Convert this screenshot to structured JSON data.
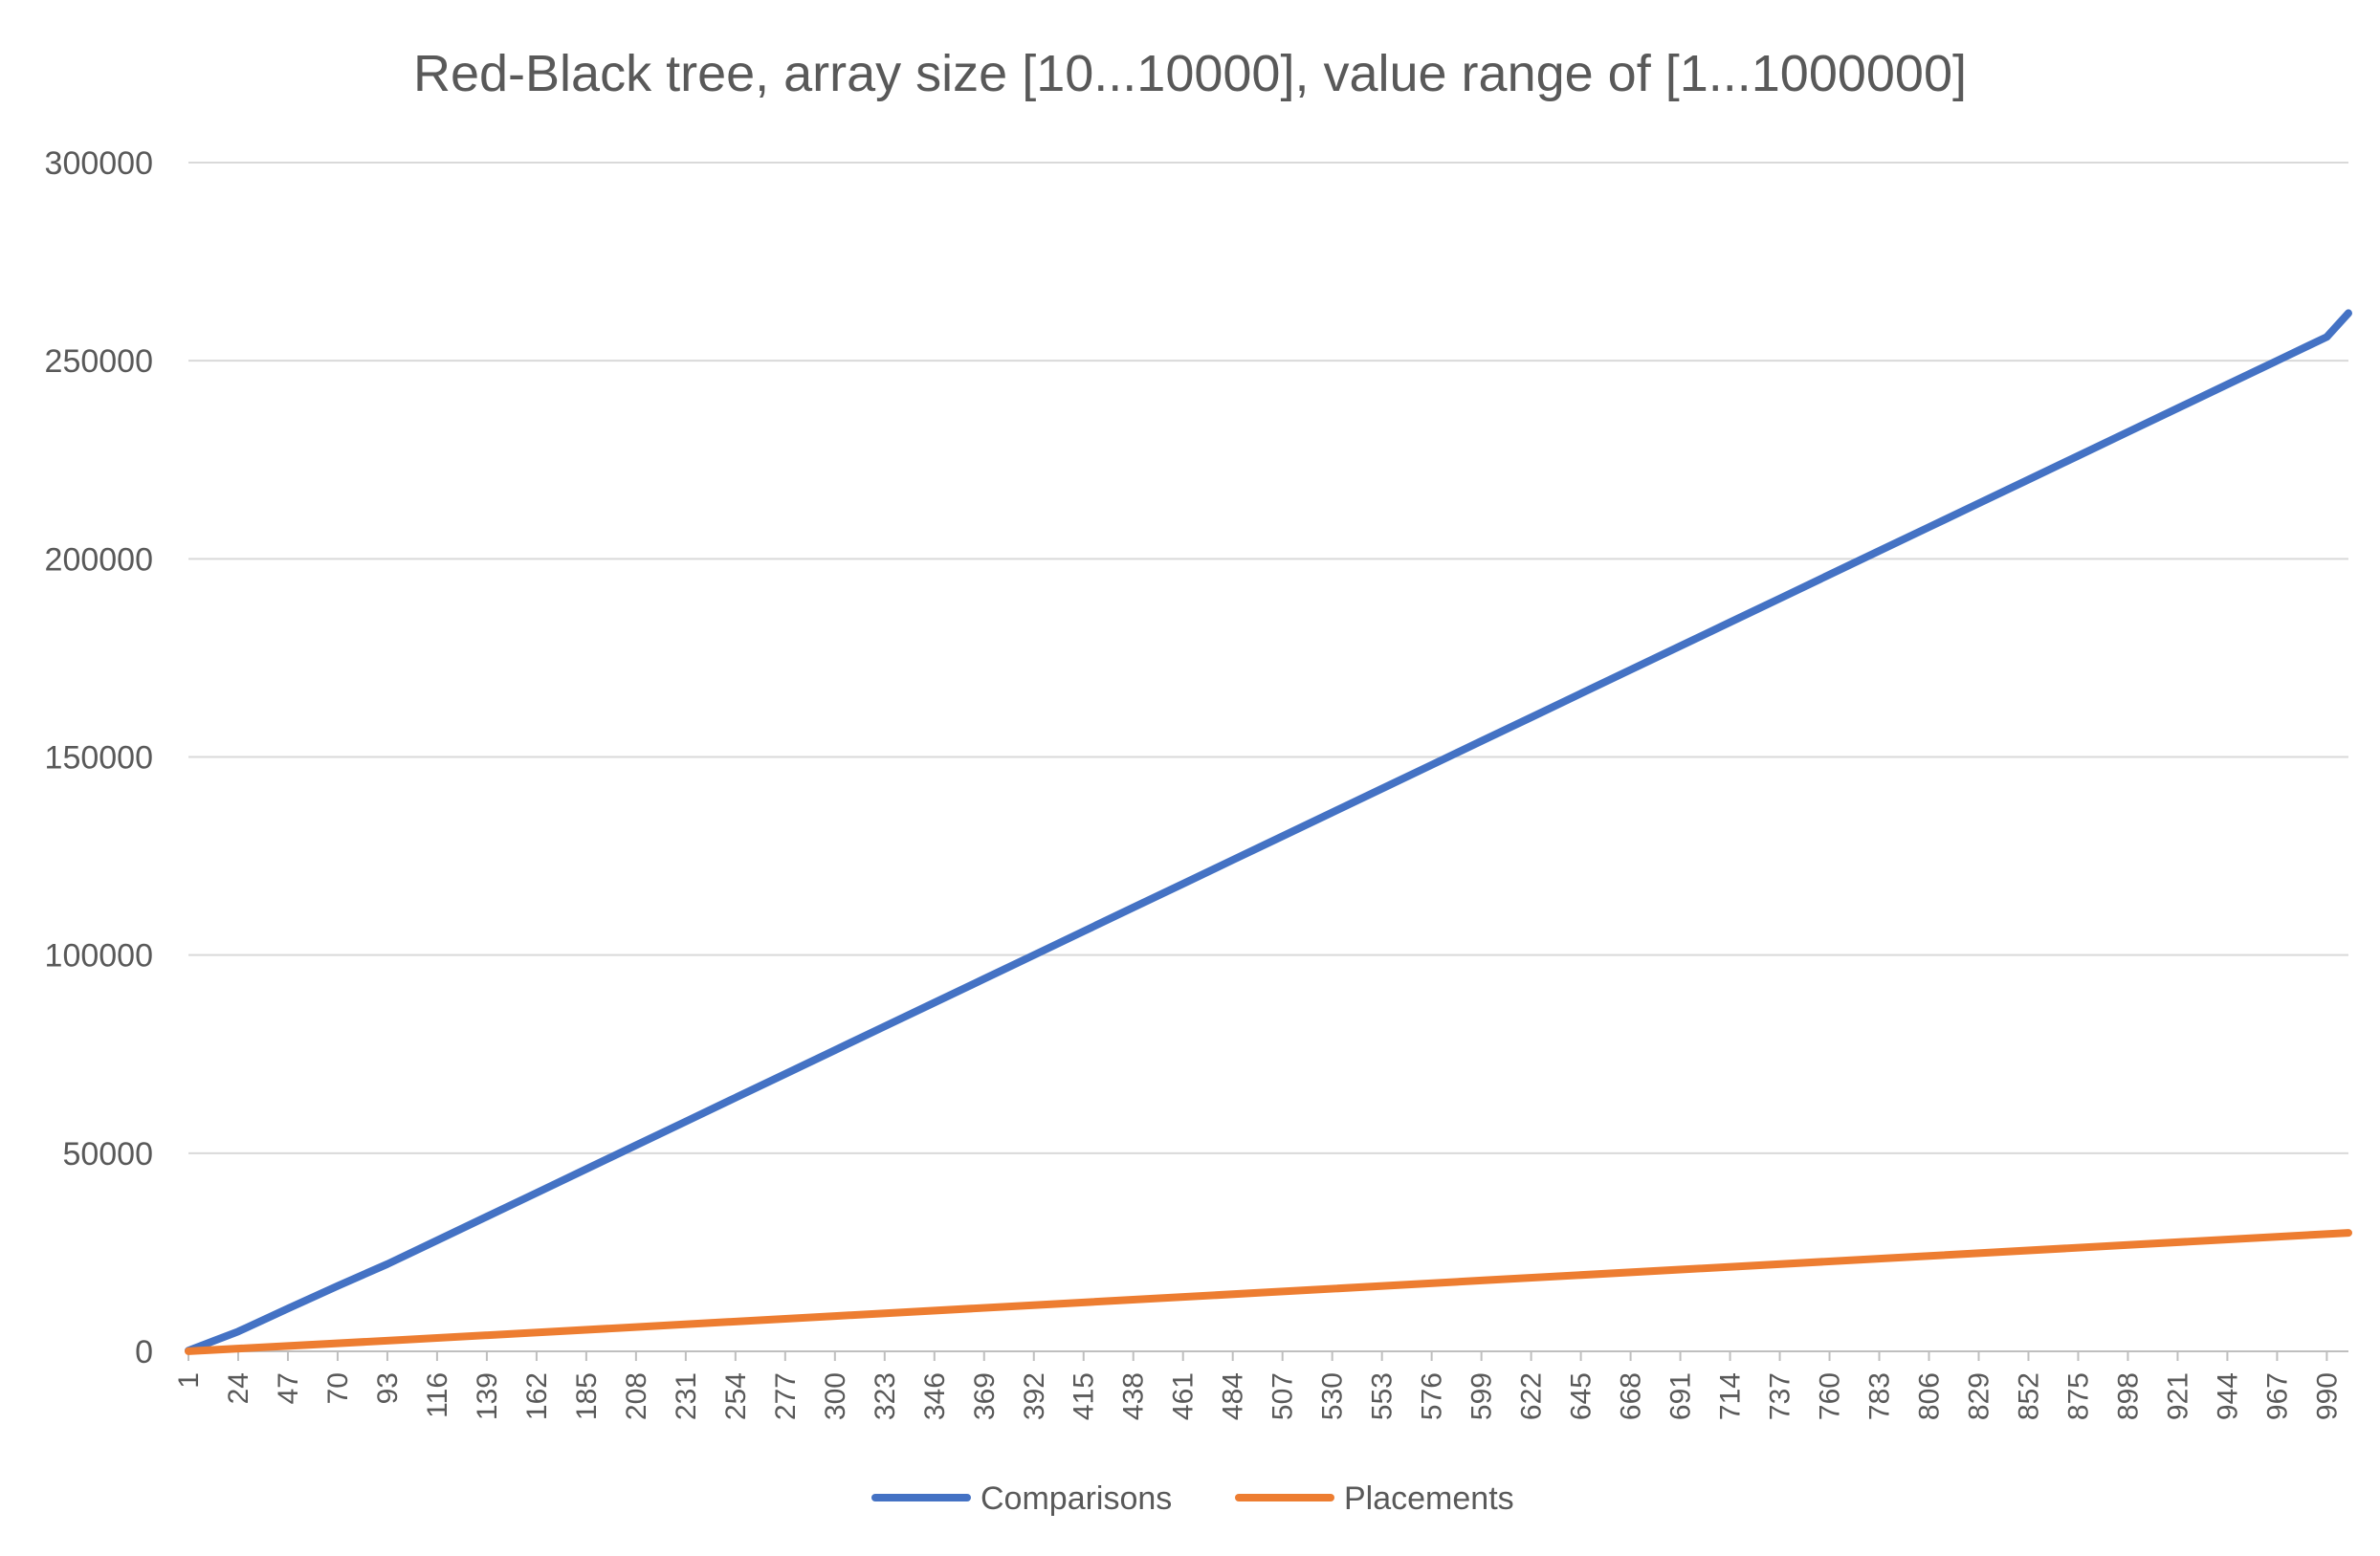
{
  "chart_data": {
    "type": "line",
    "title": "Red-Black tree, array size [10...10000], value range of [1...1000000]",
    "xlabel": "",
    "ylabel": "",
    "x_range": [
      1,
      1000
    ],
    "ylim": [
      0,
      300000
    ],
    "yticks": [
      0,
      50000,
      100000,
      150000,
      200000,
      250000,
      300000
    ],
    "yticks_labels": [
      "0",
      "50000",
      "100000",
      "150000",
      "200000",
      "250000",
      "300000"
    ],
    "xtick_labels": [
      "1",
      "24",
      "47",
      "70",
      "93",
      "116",
      "139",
      "162",
      "185",
      "208",
      "231",
      "254",
      "277",
      "300",
      "323",
      "346",
      "369",
      "392",
      "415",
      "438",
      "461",
      "484",
      "507",
      "530",
      "553",
      "576",
      "599",
      "622",
      "645",
      "668",
      "691",
      "714",
      "737",
      "760",
      "783",
      "806",
      "829",
      "852",
      "875",
      "898",
      "921",
      "944",
      "967",
      "990"
    ],
    "grid": "horizontal",
    "legend_position": "bottom",
    "series": [
      {
        "name": "Comparisons",
        "color": "#4472C4",
        "x": [
          1,
          24,
          47,
          70,
          93,
          116,
          139,
          162,
          185,
          208,
          231,
          254,
          277,
          300,
          323,
          346,
          369,
          392,
          415,
          438,
          461,
          484,
          507,
          530,
          553,
          576,
          599,
          622,
          645,
          668,
          691,
          714,
          737,
          760,
          783,
          806,
          829,
          852,
          875,
          898,
          921,
          944,
          967,
          990,
          1000
        ],
        "values": [
          200,
          5000,
          10800,
          16500,
          22000,
          28000,
          34000,
          40000,
          46000,
          52000,
          58000,
          64000,
          70000,
          76000,
          82000,
          88000,
          94000,
          100000,
          106000,
          112000,
          118000,
          124000,
          130000,
          136000,
          142000,
          148000,
          154000,
          160000,
          166000,
          172000,
          178000,
          184000,
          190000,
          196000,
          202000,
          208000,
          214000,
          220000,
          226000,
          232000,
          238000,
          244000,
          250000,
          256000,
          262000
        ]
      },
      {
        "name": "Placements",
        "color": "#ED7D31",
        "x": [
          1,
          100,
          200,
          300,
          400,
          500,
          600,
          700,
          800,
          900,
          1000
        ],
        "values": [
          30,
          2900,
          5900,
          8900,
          11900,
          14900,
          17900,
          20900,
          23900,
          26900,
          29900
        ]
      }
    ]
  }
}
